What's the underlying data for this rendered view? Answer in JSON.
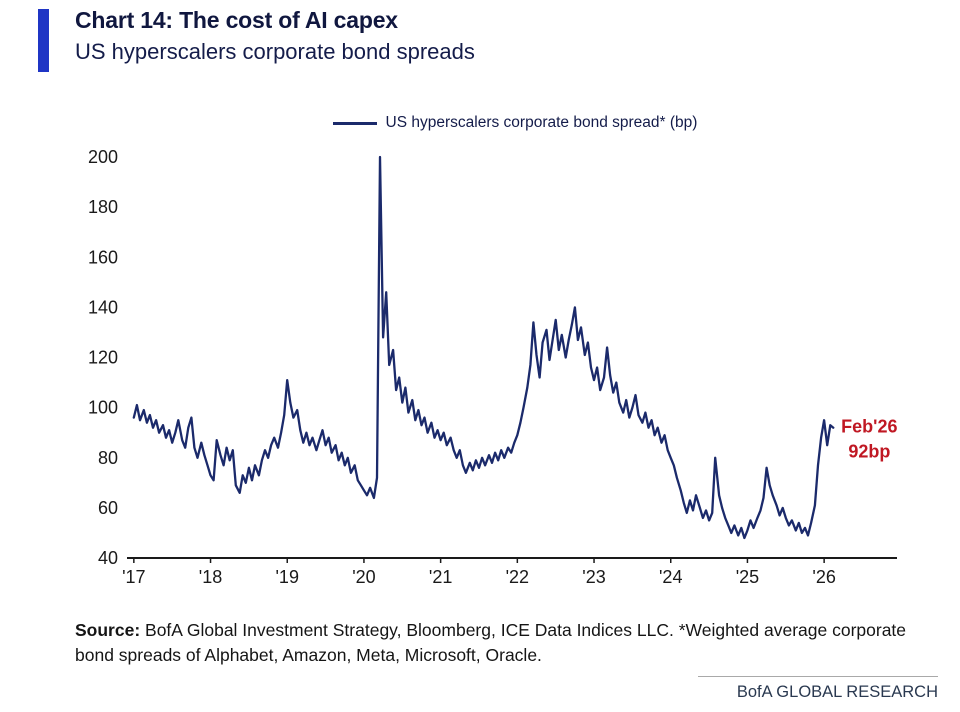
{
  "header": {
    "title": "Chart 14: The cost of AI capex",
    "subtitle": "US hyperscalers corporate bond spreads",
    "accent_color": "#1f35c5"
  },
  "source": {
    "prefix": "Source:",
    "text": " BofA Global Investment Strategy, Bloomberg, ICE Data Indices LLC. *Weighted average corporate bond spreads of Alphabet, Amazon, Meta, Microsoft, Oracle."
  },
  "footer": {
    "brand": "BofA GLOBAL RESEARCH"
  },
  "chart_data": {
    "type": "line",
    "title": "Chart 14: The cost of AI capex",
    "subtitle": "US hyperscalers corporate bond spreads",
    "ylabel": "",
    "xlabel": "",
    "ylim": [
      40,
      200
    ],
    "yticks": [
      40,
      60,
      80,
      100,
      120,
      140,
      160,
      180,
      200
    ],
    "xlim": [
      2016.95,
      2026.95
    ],
    "xticks": [
      2017,
      2018,
      2019,
      2020,
      2021,
      2022,
      2023,
      2024,
      2025,
      2026
    ],
    "xtick_labels": [
      "'17",
      "'18",
      "'19",
      "'20",
      "'21",
      "'22",
      "'23",
      "'24",
      "'25",
      "'26"
    ],
    "grid": false,
    "legend_position": "top-center",
    "line_color": "#1b2a6b",
    "annotation": {
      "x": 2026.12,
      "y": 92,
      "label": "Feb'26",
      "value_label": "92bp",
      "color": "#c01823"
    },
    "series": [
      {
        "name": "US hyperscalers corporate bond spread* (bp)",
        "points": [
          [
            2017.0,
            96
          ],
          [
            2017.04,
            101
          ],
          [
            2017.08,
            95
          ],
          [
            2017.13,
            99
          ],
          [
            2017.17,
            94
          ],
          [
            2017.21,
            97
          ],
          [
            2017.25,
            92
          ],
          [
            2017.29,
            95
          ],
          [
            2017.33,
            90
          ],
          [
            2017.38,
            93
          ],
          [
            2017.42,
            88
          ],
          [
            2017.46,
            91
          ],
          [
            2017.5,
            86
          ],
          [
            2017.54,
            90
          ],
          [
            2017.58,
            95
          ],
          [
            2017.63,
            87
          ],
          [
            2017.67,
            84
          ],
          [
            2017.71,
            92
          ],
          [
            2017.75,
            96
          ],
          [
            2017.79,
            84
          ],
          [
            2017.83,
            80
          ],
          [
            2017.88,
            86
          ],
          [
            2017.92,
            81
          ],
          [
            2017.96,
            77
          ],
          [
            2018.0,
            73
          ],
          [
            2018.04,
            71
          ],
          [
            2018.08,
            87
          ],
          [
            2018.13,
            81
          ],
          [
            2018.17,
            77
          ],
          [
            2018.21,
            84
          ],
          [
            2018.25,
            79
          ],
          [
            2018.29,
            83
          ],
          [
            2018.33,
            69
          ],
          [
            2018.38,
            66
          ],
          [
            2018.42,
            73
          ],
          [
            2018.46,
            70
          ],
          [
            2018.5,
            76
          ],
          [
            2018.54,
            71
          ],
          [
            2018.58,
            77
          ],
          [
            2018.63,
            73
          ],
          [
            2018.67,
            79
          ],
          [
            2018.71,
            83
          ],
          [
            2018.75,
            80
          ],
          [
            2018.79,
            85
          ],
          [
            2018.83,
            88
          ],
          [
            2018.88,
            84
          ],
          [
            2018.92,
            90
          ],
          [
            2018.96,
            97
          ],
          [
            2019.0,
            111
          ],
          [
            2019.04,
            102
          ],
          [
            2019.08,
            96
          ],
          [
            2019.13,
            99
          ],
          [
            2019.17,
            91
          ],
          [
            2019.21,
            86
          ],
          [
            2019.25,
            90
          ],
          [
            2019.29,
            85
          ],
          [
            2019.33,
            88
          ],
          [
            2019.38,
            83
          ],
          [
            2019.42,
            87
          ],
          [
            2019.46,
            91
          ],
          [
            2019.5,
            85
          ],
          [
            2019.54,
            88
          ],
          [
            2019.58,
            82
          ],
          [
            2019.63,
            85
          ],
          [
            2019.67,
            79
          ],
          [
            2019.71,
            82
          ],
          [
            2019.75,
            77
          ],
          [
            2019.79,
            80
          ],
          [
            2019.83,
            74
          ],
          [
            2019.88,
            77
          ],
          [
            2019.92,
            71
          ],
          [
            2019.96,
            69
          ],
          [
            2020.0,
            67
          ],
          [
            2020.04,
            65
          ],
          [
            2020.08,
            68
          ],
          [
            2020.13,
            64
          ],
          [
            2020.17,
            72
          ],
          [
            2020.21,
            200
          ],
          [
            2020.25,
            128
          ],
          [
            2020.29,
            146
          ],
          [
            2020.33,
            117
          ],
          [
            2020.38,
            123
          ],
          [
            2020.42,
            107
          ],
          [
            2020.46,
            112
          ],
          [
            2020.5,
            102
          ],
          [
            2020.54,
            108
          ],
          [
            2020.58,
            98
          ],
          [
            2020.63,
            103
          ],
          [
            2020.67,
            95
          ],
          [
            2020.71,
            99
          ],
          [
            2020.75,
            93
          ],
          [
            2020.79,
            96
          ],
          [
            2020.83,
            90
          ],
          [
            2020.88,
            94
          ],
          [
            2020.92,
            88
          ],
          [
            2020.96,
            91
          ],
          [
            2021.0,
            87
          ],
          [
            2021.04,
            90
          ],
          [
            2021.08,
            85
          ],
          [
            2021.13,
            88
          ],
          [
            2021.17,
            83
          ],
          [
            2021.21,
            80
          ],
          [
            2021.25,
            83
          ],
          [
            2021.29,
            77
          ],
          [
            2021.33,
            74
          ],
          [
            2021.38,
            78
          ],
          [
            2021.42,
            75
          ],
          [
            2021.46,
            79
          ],
          [
            2021.5,
            76
          ],
          [
            2021.54,
            80
          ],
          [
            2021.58,
            77
          ],
          [
            2021.63,
            81
          ],
          [
            2021.67,
            78
          ],
          [
            2021.71,
            82
          ],
          [
            2021.75,
            79
          ],
          [
            2021.79,
            83
          ],
          [
            2021.83,
            80
          ],
          [
            2021.88,
            84
          ],
          [
            2021.92,
            82
          ],
          [
            2021.96,
            86
          ],
          [
            2022.0,
            89
          ],
          [
            2022.04,
            94
          ],
          [
            2022.08,
            100
          ],
          [
            2022.13,
            108
          ],
          [
            2022.17,
            117
          ],
          [
            2022.21,
            134
          ],
          [
            2022.25,
            121
          ],
          [
            2022.29,
            112
          ],
          [
            2022.33,
            126
          ],
          [
            2022.38,
            131
          ],
          [
            2022.42,
            119
          ],
          [
            2022.46,
            127
          ],
          [
            2022.5,
            135
          ],
          [
            2022.54,
            123
          ],
          [
            2022.58,
            129
          ],
          [
            2022.63,
            120
          ],
          [
            2022.67,
            127
          ],
          [
            2022.71,
            133
          ],
          [
            2022.75,
            140
          ],
          [
            2022.79,
            127
          ],
          [
            2022.83,
            132
          ],
          [
            2022.88,
            121
          ],
          [
            2022.92,
            126
          ],
          [
            2022.96,
            116
          ],
          [
            2023.0,
            111
          ],
          [
            2023.04,
            116
          ],
          [
            2023.08,
            107
          ],
          [
            2023.13,
            112
          ],
          [
            2023.17,
            124
          ],
          [
            2023.21,
            113
          ],
          [
            2023.25,
            106
          ],
          [
            2023.29,
            110
          ],
          [
            2023.33,
            102
          ],
          [
            2023.38,
            98
          ],
          [
            2023.42,
            103
          ],
          [
            2023.46,
            96
          ],
          [
            2023.5,
            100
          ],
          [
            2023.54,
            105
          ],
          [
            2023.58,
            97
          ],
          [
            2023.63,
            94
          ],
          [
            2023.67,
            98
          ],
          [
            2023.71,
            92
          ],
          [
            2023.75,
            95
          ],
          [
            2023.79,
            89
          ],
          [
            2023.83,
            92
          ],
          [
            2023.88,
            86
          ],
          [
            2023.92,
            89
          ],
          [
            2023.96,
            83
          ],
          [
            2024.0,
            80
          ],
          [
            2024.04,
            77
          ],
          [
            2024.08,
            72
          ],
          [
            2024.13,
            67
          ],
          [
            2024.17,
            62
          ],
          [
            2024.21,
            58
          ],
          [
            2024.25,
            63
          ],
          [
            2024.29,
            59
          ],
          [
            2024.33,
            65
          ],
          [
            2024.38,
            60
          ],
          [
            2024.42,
            56
          ],
          [
            2024.46,
            59
          ],
          [
            2024.5,
            55
          ],
          [
            2024.54,
            58
          ],
          [
            2024.58,
            80
          ],
          [
            2024.63,
            65
          ],
          [
            2024.67,
            60
          ],
          [
            2024.71,
            56
          ],
          [
            2024.75,
            53
          ],
          [
            2024.79,
            50
          ],
          [
            2024.83,
            53
          ],
          [
            2024.88,
            49
          ],
          [
            2024.92,
            52
          ],
          [
            2024.96,
            48
          ],
          [
            2025.0,
            51
          ],
          [
            2025.04,
            55
          ],
          [
            2025.08,
            52
          ],
          [
            2025.13,
            56
          ],
          [
            2025.17,
            59
          ],
          [
            2025.21,
            64
          ],
          [
            2025.25,
            76
          ],
          [
            2025.29,
            69
          ],
          [
            2025.33,
            65
          ],
          [
            2025.38,
            61
          ],
          [
            2025.42,
            57
          ],
          [
            2025.46,
            60
          ],
          [
            2025.5,
            56
          ],
          [
            2025.54,
            53
          ],
          [
            2025.58,
            55
          ],
          [
            2025.63,
            51
          ],
          [
            2025.67,
            54
          ],
          [
            2025.71,
            50
          ],
          [
            2025.75,
            52
          ],
          [
            2025.79,
            49
          ],
          [
            2025.83,
            54
          ],
          [
            2025.88,
            61
          ],
          [
            2025.92,
            77
          ],
          [
            2025.96,
            88
          ],
          [
            2026.0,
            95
          ],
          [
            2026.04,
            85
          ],
          [
            2026.08,
            93
          ],
          [
            2026.12,
            92
          ]
        ]
      }
    ]
  }
}
